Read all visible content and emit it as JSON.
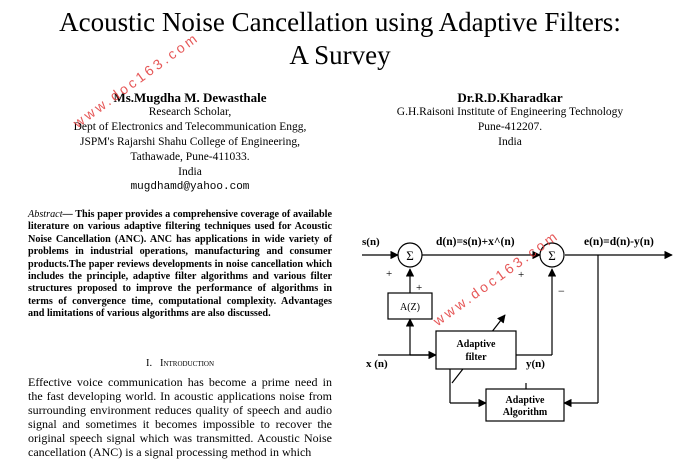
{
  "paper": {
    "title_line1": "Acoustic Noise Cancellation using Adaptive Filters:",
    "title_line2": "A Survey"
  },
  "authors": [
    {
      "name": "Ms.Mugdha M. Dewasthale",
      "lines": [
        "Research Scholar,",
        "Dept of Electronics and Telecommunication Engg,",
        "JSPM's Rajarshi Shahu College of Engineering,",
        "Tathawade, Pune-411033.",
        "India"
      ],
      "email": "mugdhamd@yahoo.com"
    },
    {
      "name": "Dr.R.D.Kharadkar",
      "lines": [
        "G.H.Raisoni Institute of Engineering Technology",
        "Pune-412207.",
        "India"
      ]
    }
  ],
  "abstract": {
    "label": "Abstract",
    "dash": "—",
    "text": " This paper provides a comprehensive coverage of available literature on various adaptive filtering techniques used for Acoustic Noise Cancellation (ANC). ANC has applications in wide variety of problems in industrial operations, manufacturing and consumer products.The paper reviews developments in noise cancellation which includes the principle, adaptive filter algorithms and various filter structures proposed to improve the performance of algorithms in terms of convergence time, computational complexity. Advantages and limitations of various algorithms are also discussed."
  },
  "section": {
    "number": "I.",
    "title": "Introduction"
  },
  "intro_text": "Effective voice communication has become a prime need in the fast developing world. In acoustic applications noise from surrounding environment reduces quality of speech and audio signal and sometimes it becomes impossible to recover the original speech signal which was transmitted. Acoustic Noise cancellation (ANC) is a signal processing method in which",
  "diagram": {
    "s_label": "s(n)",
    "d_label": "d(n)=s(n)+x^(n)",
    "e_label": "e(n)=d(n)-y(n)",
    "x_label": "x (n)",
    "y_label": "y(n)",
    "sum_symbol": "Σ",
    "az_label": "A(Z)",
    "plus": "+",
    "minus": "−",
    "adaptive_filter_line1": "Adaptive",
    "adaptive_filter_line2": "filter",
    "adaptive_algo_line1": "Adaptive",
    "adaptive_algo_line2": "Algorithm"
  },
  "watermark": {
    "text": "www.doc163.com",
    "color": "#e23b3b"
  }
}
